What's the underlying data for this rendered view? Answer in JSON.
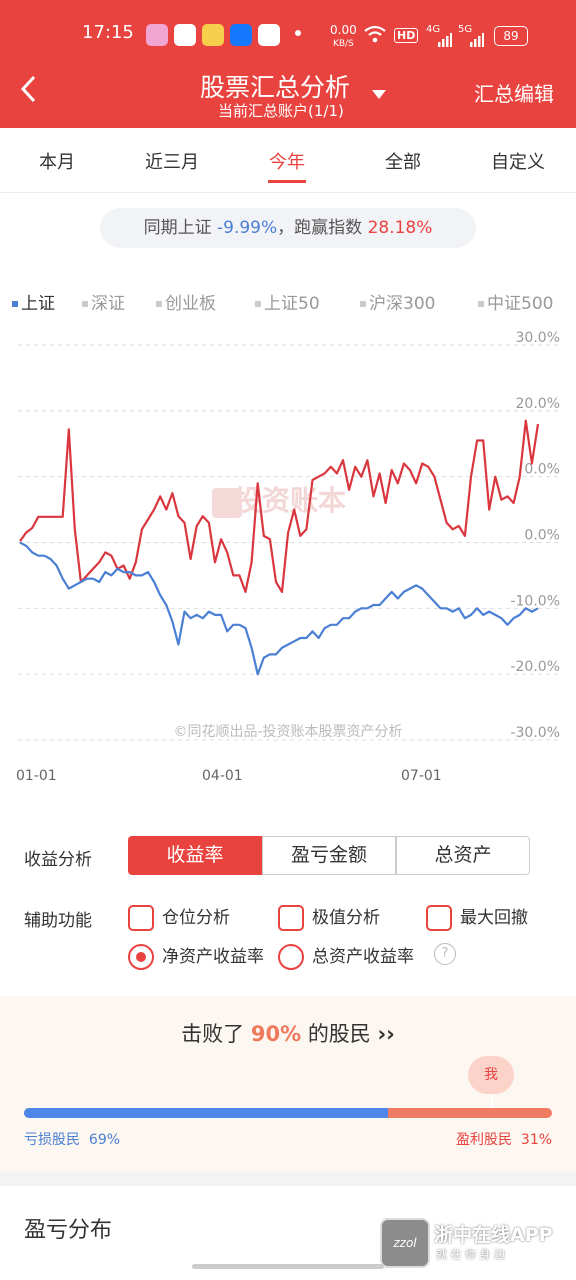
{
  "status_bar": {
    "time": "17:15",
    "net_speed_value": "0.00",
    "net_speed_unit": "KB/S",
    "hd_label": "HD",
    "signal1": "4G",
    "signal2": "5G",
    "battery": "89"
  },
  "header": {
    "title": "股票汇总分析",
    "subtitle": "当前汇总账户(1/1)",
    "right_action": "汇总编辑"
  },
  "tabs": [
    {
      "label": "本月"
    },
    {
      "label": "近三月"
    },
    {
      "label": "今年",
      "active": true
    },
    {
      "label": "全部"
    },
    {
      "label": "自定义"
    }
  ],
  "compare": {
    "prefix": "同期上证",
    "sh_value": "-9.99%",
    "middle": "，跑赢指数",
    "beat_value": "28.18%"
  },
  "legend": [
    {
      "label": "上证",
      "active": true
    },
    {
      "label": "深证"
    },
    {
      "label": "创业板"
    },
    {
      "label": "上证50"
    },
    {
      "label": "沪深300"
    },
    {
      "label": "中证500"
    }
  ],
  "chart_data": {
    "type": "line",
    "x_ticks": [
      "01-01",
      "04-01",
      "07-01"
    ],
    "y_ticks": [
      "30.0%",
      "20.0%",
      "0.0%",
      "0.0%",
      "-10.0%",
      "-20.0%",
      "-30.0%"
    ],
    "ylim": [
      -30,
      30
    ],
    "watermark": "投资账本",
    "credit": "©同花顺出品-投资账本股票资产分析",
    "series": [
      {
        "color": "#d9363e",
        "values": [
          0.2,
          1.5,
          2.2,
          3.9,
          3.9,
          3.9,
          3.9,
          3.9,
          17.2,
          2.0,
          -6.0,
          -5.0,
          -4.0,
          -3.0,
          -1.5,
          -2.0,
          -4.0,
          -3.5,
          -5.5,
          -3.0,
          2.0,
          3.5,
          5.0,
          7.0,
          5.0,
          7.5,
          4.0,
          3.0,
          -2.5,
          2.5,
          4.0,
          3.0,
          -3.0,
          0.5,
          -1.5,
          -5.0,
          -5.0,
          -7.5,
          -3.0,
          9.0,
          1.0,
          0.5,
          -6.0,
          -7.5,
          1.5,
          5.0,
          1.0,
          2.0,
          9.5,
          10.0,
          10.5,
          11.5,
          10.5,
          12.5,
          8.0,
          11.5,
          10.0,
          12.5,
          7.0,
          10.5,
          6.0,
          11.0,
          9.0,
          12.0,
          11.0,
          9.0,
          12.0,
          11.5,
          10.0,
          6.5,
          3.0,
          2.0,
          2.5,
          1.0,
          10.0,
          15.5,
          15.5,
          5.0,
          10.0,
          6.5,
          7.0,
          6.0,
          10.0,
          18.5,
          12.0,
          18.0
        ]
      },
      {
        "color": "#4a7fd4",
        "values": [
          0.0,
          -0.5,
          -1.5,
          -2.0,
          -2.0,
          -2.5,
          -3.5,
          -5.5,
          -7.0,
          -6.5,
          -6.0,
          -5.5,
          -5.5,
          -6.0,
          -4.5,
          -5.0,
          -4.0,
          -4.5,
          -4.5,
          -5.0,
          -5.0,
          -4.5,
          -6.0,
          -8.0,
          -9.5,
          -12.0,
          -15.5,
          -10.5,
          -11.5,
          -11.0,
          -11.5,
          -10.5,
          -11.0,
          -11.0,
          -13.5,
          -12.5,
          -12.5,
          -13.0,
          -16.0,
          -20.0,
          -17.5,
          -17.0,
          -17.0,
          -16.0,
          -15.5,
          -15.0,
          -14.5,
          -14.5,
          -13.5,
          -14.5,
          -13.0,
          -12.5,
          -12.5,
          -11.5,
          -11.5,
          -10.5,
          -10.0,
          -10.0,
          -9.5,
          -9.5,
          -8.5,
          -7.5,
          -8.5,
          -7.5,
          -7.0,
          -6.5,
          -7.0,
          -8.0,
          -9.0,
          -10.0,
          -10.0,
          -10.5,
          -10.0,
          -11.5,
          -11.0,
          -10.0,
          -11.0,
          -10.5,
          -11.0,
          -11.5,
          -12.5,
          -11.5,
          -11.0,
          -10.0,
          -10.5,
          -10.0
        ]
      }
    ]
  },
  "segmented": {
    "label": "收益分析",
    "options": [
      "收益率",
      "盈亏金额",
      "总资产"
    ],
    "active": 0
  },
  "aux": {
    "label": "辅助功能",
    "checks": [
      "仓位分析",
      "极值分析",
      "最大回撤"
    ],
    "radios": [
      "净资产收益率",
      "总资产收益率"
    ],
    "radio_active": 0,
    "help": "?"
  },
  "beat": {
    "prefix": "击败了",
    "percent": "90%",
    "suffix": "的股民",
    "arrow": "››",
    "me": "我",
    "loss_label": "亏损股民",
    "loss_value": "69%",
    "profit_label": "盈利股民",
    "profit_value": "31%",
    "loss_fraction": 0.69
  },
  "distribution": {
    "title": "盈亏分布"
  },
  "watermark_logo": {
    "name": "浙中在线APP",
    "slogan": "就 在 你 身 边",
    "badge": "zzol"
  }
}
